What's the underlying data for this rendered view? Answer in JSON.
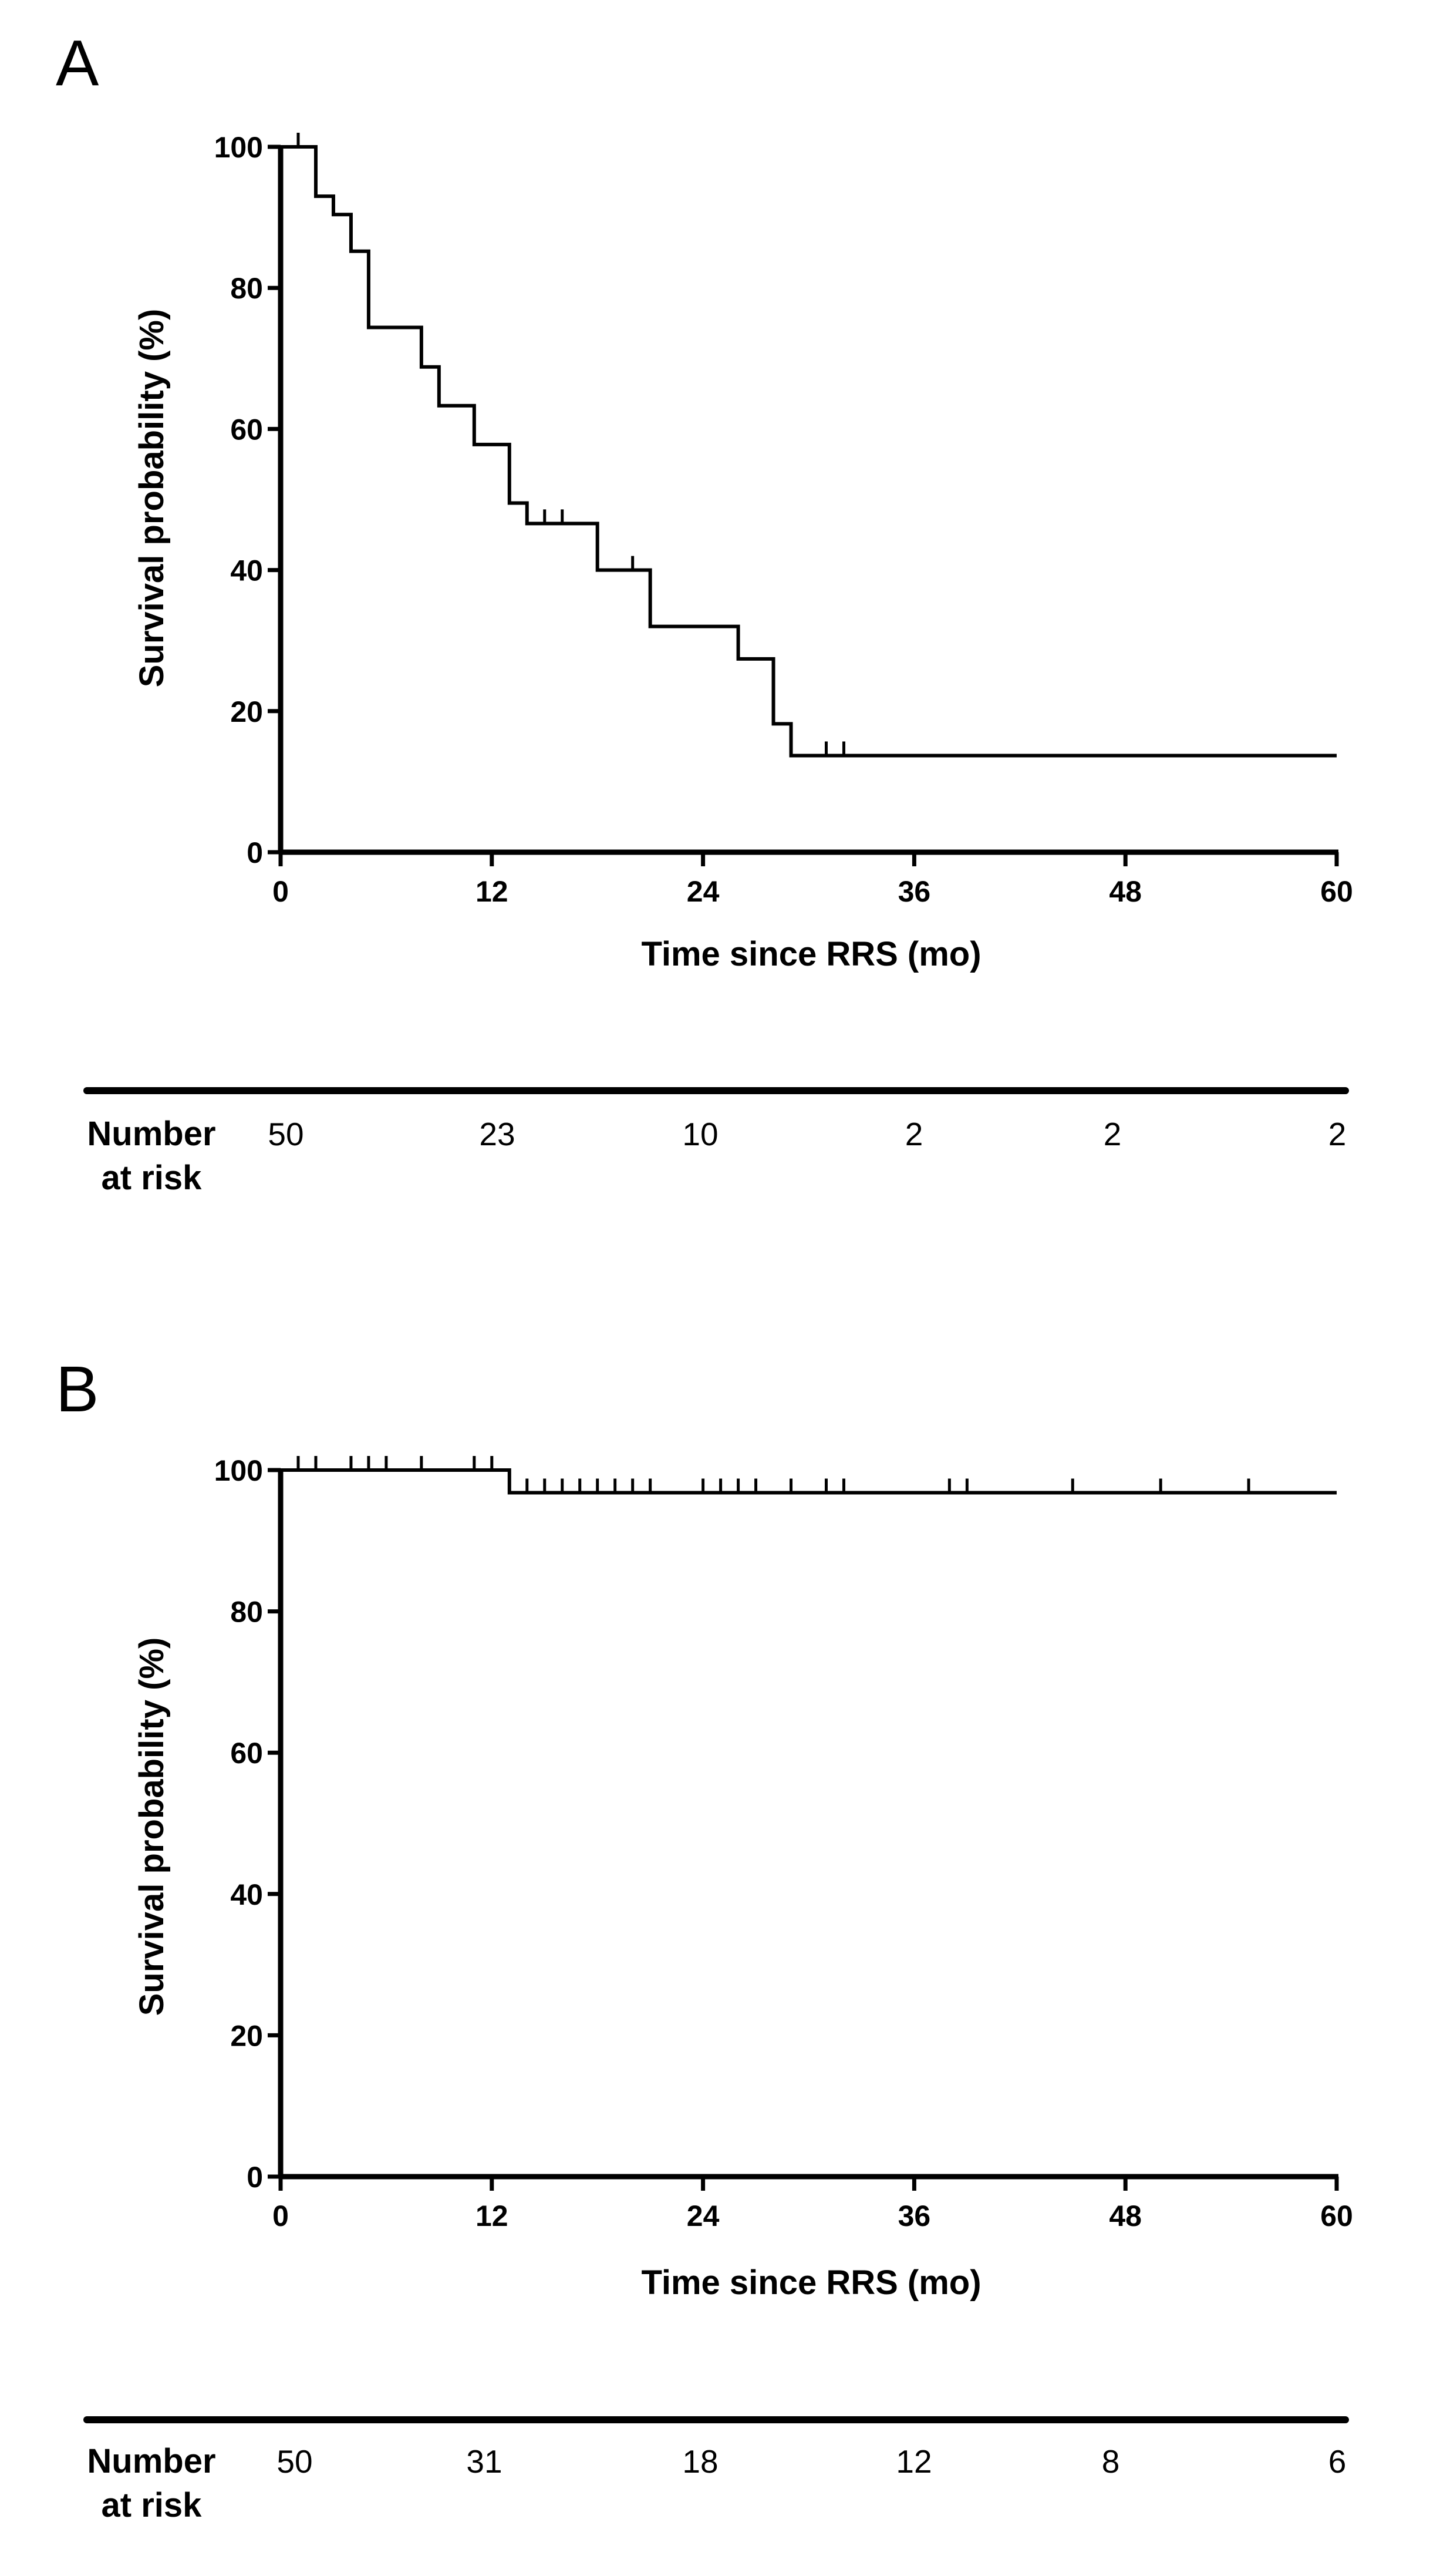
{
  "chart_data": [
    {
      "type": "line",
      "subtype": "kaplan-meier",
      "panel": "A",
      "xlabel": "Time since RRS (mo)",
      "ylabel": "Survival probability (%)",
      "xlim": [
        0,
        60
      ],
      "ylim": [
        0,
        100
      ],
      "xticks": [
        0,
        12,
        24,
        36,
        48,
        60
      ],
      "yticks": [
        0,
        20,
        40,
        60,
        80,
        100
      ],
      "steps": [
        [
          0,
          100
        ],
        [
          2,
          93
        ],
        [
          3,
          90.4
        ],
        [
          4,
          85.2
        ],
        [
          5,
          74.4
        ],
        [
          8,
          68.8
        ],
        [
          9,
          63.3
        ],
        [
          11,
          57.8
        ],
        [
          13,
          49.5
        ],
        [
          14,
          46.6
        ],
        [
          18,
          40
        ],
        [
          21,
          32
        ],
        [
          26,
          27.4
        ],
        [
          28,
          18.2
        ],
        [
          29,
          13.7
        ],
        [
          60,
          13.7
        ]
      ],
      "censored": [
        [
          1,
          100
        ],
        [
          15,
          46.6
        ],
        [
          16,
          46.6
        ],
        [
          20,
          40
        ],
        [
          31,
          13.7
        ],
        [
          32,
          13.7
        ]
      ],
      "risk_table": {
        "title_line1": "Number",
        "title_line2": "at risk",
        "times": [
          0,
          12,
          24,
          36,
          48,
          60
        ],
        "values": [
          "50",
          "23",
          "10",
          "2",
          "2",
          "2"
        ]
      }
    },
    {
      "type": "line",
      "subtype": "kaplan-meier",
      "panel": "B",
      "xlabel": "Time since RRS (mo)",
      "ylabel": "Survival probability (%)",
      "xlim": [
        0,
        60
      ],
      "ylim": [
        0,
        100
      ],
      "xticks": [
        0,
        12,
        24,
        36,
        48,
        60
      ],
      "yticks": [
        0,
        20,
        40,
        60,
        80,
        100
      ],
      "steps": [
        [
          0,
          100
        ],
        [
          13,
          96.8
        ],
        [
          60,
          96.8
        ]
      ],
      "censored": [
        [
          1,
          100
        ],
        [
          2,
          100
        ],
        [
          4,
          100
        ],
        [
          5,
          100
        ],
        [
          6,
          100
        ],
        [
          8,
          100
        ],
        [
          11,
          100
        ],
        [
          12,
          100
        ],
        [
          14,
          96.8
        ],
        [
          15,
          96.8
        ],
        [
          16,
          96.8
        ],
        [
          17,
          96.8
        ],
        [
          18,
          96.8
        ],
        [
          19,
          96.8
        ],
        [
          20,
          96.8
        ],
        [
          21,
          96.8
        ],
        [
          24,
          96.8
        ],
        [
          25,
          96.8
        ],
        [
          26,
          96.8
        ],
        [
          27,
          96.8
        ],
        [
          29,
          96.8
        ],
        [
          31,
          96.8
        ],
        [
          32,
          96.8
        ],
        [
          38,
          96.8
        ],
        [
          39,
          96.8
        ],
        [
          45,
          96.8
        ],
        [
          50,
          96.8
        ],
        [
          55,
          96.8
        ]
      ],
      "risk_table": {
        "title_line1": "Number",
        "title_line2": "at risk",
        "times": [
          0,
          12,
          24,
          36,
          48,
          60
        ],
        "values": [
          "50",
          "31",
          "18",
          "12",
          "8",
          "6"
        ]
      }
    }
  ]
}
